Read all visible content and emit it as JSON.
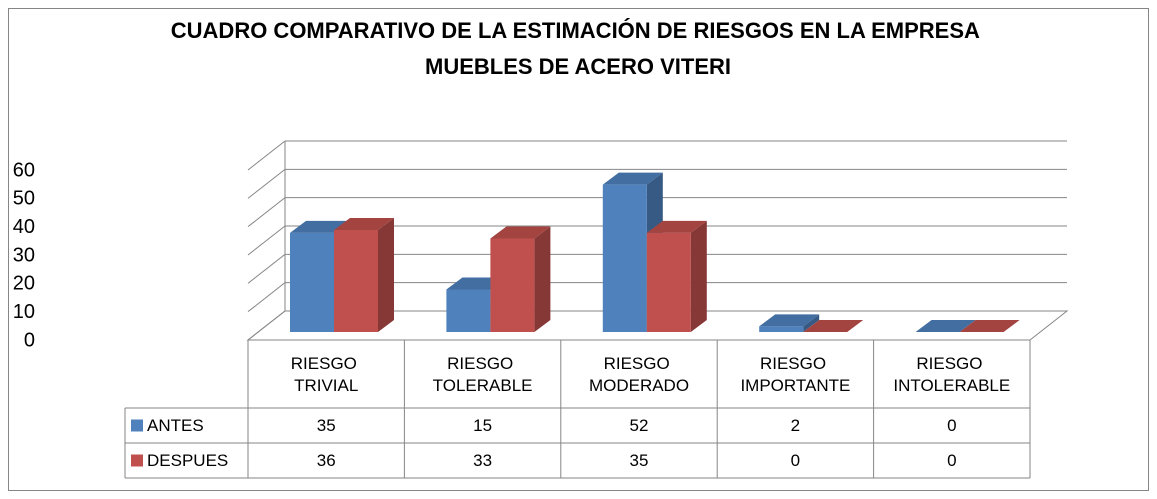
{
  "chart_data": {
    "type": "bar3d",
    "title": "CUADRO COMPARATIVO DE LA ESTIMACIÓN DE RIESGOS EN LA EMPRESA MUEBLES DE ACERO VITERI",
    "categories": [
      "RIESGO TRIVIAL",
      "RIESGO TOLERABLE",
      "RIESGO MODERADO",
      "RIESGO IMPORTANTE",
      "RIESGO INTOLERABLE"
    ],
    "series": [
      {
        "name": "ANTES",
        "color": "#4f81bd",
        "values": [
          35,
          15,
          52,
          2,
          0
        ]
      },
      {
        "name": "DESPUES",
        "color": "#c0504d",
        "values": [
          36,
          33,
          35,
          0,
          0
        ]
      }
    ],
    "ylim": [
      0,
      60
    ],
    "yticks": [
      0,
      10,
      20,
      30,
      40,
      50,
      60
    ],
    "grid": true,
    "data_table": true
  }
}
